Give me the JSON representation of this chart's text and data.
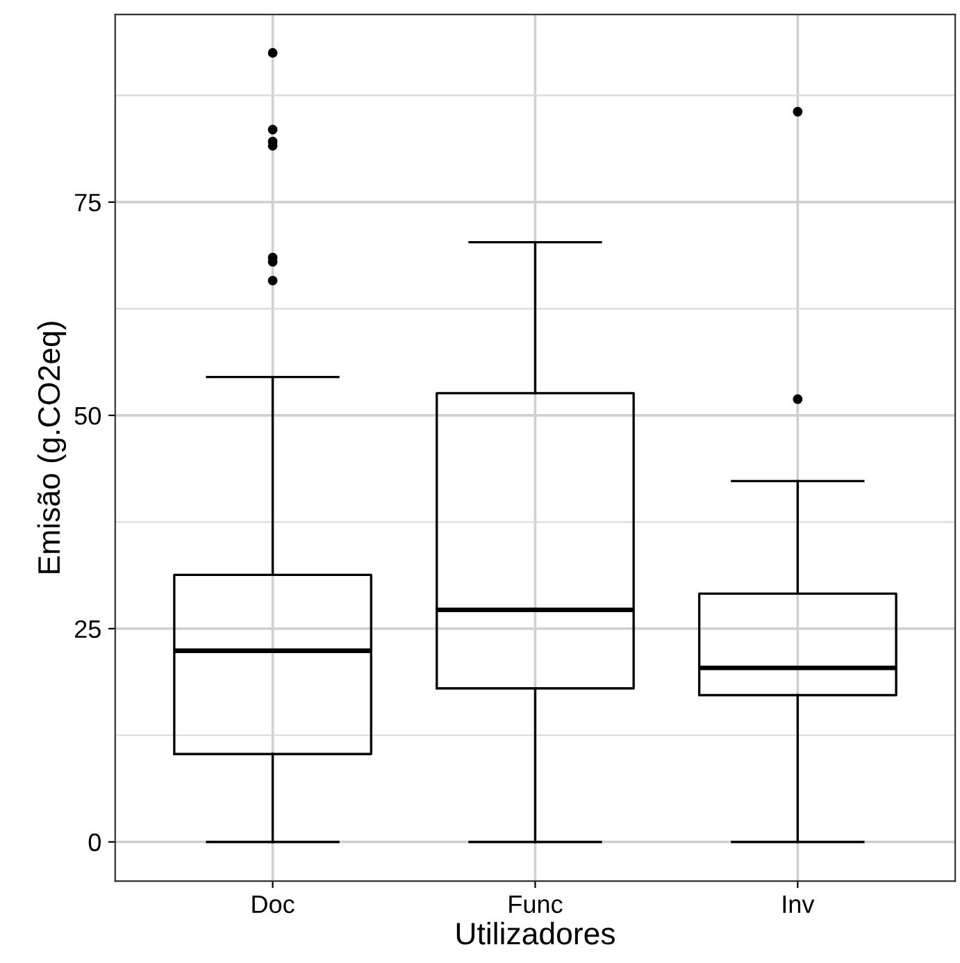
{
  "chart_data": {
    "type": "box",
    "xlabel": "Utilizadores",
    "ylabel": "Emisão (g.CO2eq)",
    "categories": [
      "Doc",
      "Func",
      "Inv"
    ],
    "boxes": [
      {
        "low": 0,
        "q1": 10.3,
        "median": 22.4,
        "q3": 31.3,
        "high": 54.5,
        "outliers": [
          92.5,
          83.5,
          82.1,
          81.6,
          68.5,
          68.0,
          65.8
        ]
      },
      {
        "low": 0,
        "q1": 18.0,
        "median": 27.2,
        "q3": 52.6,
        "high": 70.3
      },
      {
        "low": 0,
        "q1": 17.2,
        "median": 20.4,
        "q3": 29.1,
        "high": 42.3,
        "outliers": [
          85.6,
          51.9
        ]
      }
    ],
    "ylim": [
      -4.6,
      97.0
    ],
    "yticks": [
      0,
      {
        "value": 12.5,
        "label": null
      },
      25,
      {
        "value": 37.5,
        "label": null
      },
      50,
      {
        "value": 62.5,
        "label": null
      },
      75,
      {
        "value": 87.5,
        "label": null
      }
    ],
    "grid": true,
    "legend": false
  }
}
